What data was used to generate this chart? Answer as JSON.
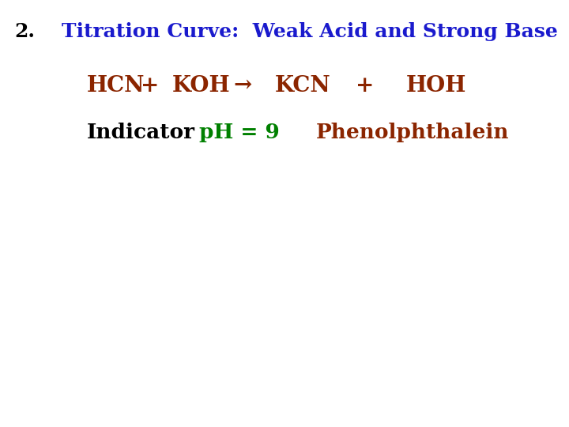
{
  "number": "2.",
  "title": "Titration Curve:  Weak Acid and Strong Base",
  "title_color": "#1a1acd",
  "number_color": "#000000",
  "eq_color": "#8B2500",
  "indicator_label": "Indicator",
  "indicator_label_color": "#000000",
  "ph_text": "pH = 9",
  "ph_color": "#008000",
  "phenolphthalein_text": "Phenolphthalein",
  "phenolphthalein_color": "#8B2500",
  "background_color": "#FFFFFF",
  "number_fontsize": 18,
  "title_fontsize": 18,
  "equation_fontsize": 20,
  "indicator_fontsize": 19
}
